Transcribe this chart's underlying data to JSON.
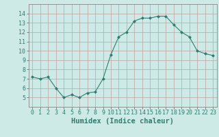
{
  "x": [
    0,
    1,
    2,
    3,
    4,
    5,
    6,
    7,
    8,
    9,
    10,
    11,
    12,
    13,
    14,
    15,
    16,
    17,
    18,
    19,
    20,
    21,
    22,
    23
  ],
  "y": [
    7.2,
    7.0,
    7.2,
    6.0,
    5.0,
    5.3,
    5.0,
    5.5,
    5.6,
    7.0,
    9.6,
    11.5,
    12.0,
    13.2,
    13.5,
    13.5,
    13.7,
    13.7,
    12.8,
    12.0,
    11.5,
    10.0,
    9.7,
    9.5
  ],
  "line_color": "#2e7d6e",
  "marker_color": "#2e7d6e",
  "bg_color": "#ceeae7",
  "grid_color": "#c0a0a0",
  "xlabel": "Humidex (Indice chaleur)",
  "xlim": [
    -0.5,
    23.5
  ],
  "ylim": [
    4,
    15
  ],
  "yticks": [
    5,
    6,
    7,
    8,
    9,
    10,
    11,
    12,
    13,
    14
  ],
  "xticks": [
    0,
    1,
    2,
    3,
    4,
    5,
    6,
    7,
    8,
    9,
    10,
    11,
    12,
    13,
    14,
    15,
    16,
    17,
    18,
    19,
    20,
    21,
    22,
    23
  ],
  "tick_fontsize": 6.0,
  "xlabel_fontsize": 7.5
}
